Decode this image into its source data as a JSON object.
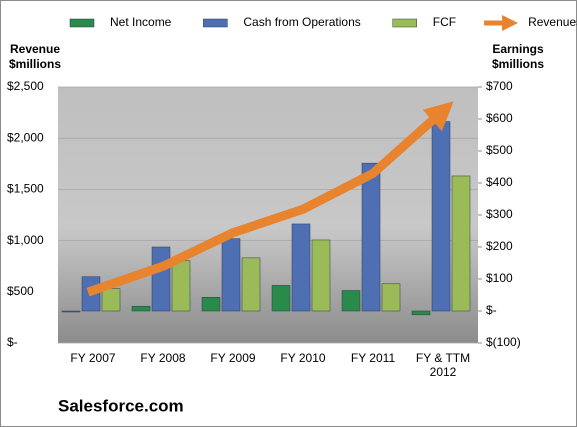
{
  "chart_data": {
    "type": "bar-line",
    "categories": [
      "FY 2007",
      "FY 2008",
      "FY 2009",
      "FY 2010",
      "FY 2011",
      "FY & TTM 2012"
    ],
    "series": [
      {
        "name": "Net Income",
        "color": "#2a8a4a",
        "axis": "y2",
        "values": [
          0,
          15,
          43,
          80,
          64,
          -12
        ]
      },
      {
        "name": "Cash from Operations",
        "color": "#4f6fb3",
        "axis": "y2",
        "values": [
          107,
          200,
          226,
          272,
          462,
          592
        ]
      },
      {
        "name": "FCF",
        "color": "#9bbb59",
        "axis": "y2",
        "values": [
          70,
          157,
          166,
          222,
          85,
          422
        ]
      },
      {
        "name": "Revenues",
        "color": "#e8832e",
        "type": "line",
        "values": [
          497,
          749,
          1077,
          1306,
          1657,
          2267
        ]
      }
    ],
    "ylabel": [
      "Revenue",
      "$millions"
    ],
    "y2label": [
      "Earnings",
      "$millions"
    ],
    "ylim": [
      0,
      2500
    ],
    "yticks": [
      {
        "value": 0,
        "label": "$-"
      },
      {
        "value": 500,
        "label": "$500"
      },
      {
        "value": 1000,
        "label": "$1,000"
      },
      {
        "value": 1500,
        "label": "$1,500"
      },
      {
        "value": 2000,
        "label": "$2,000"
      },
      {
        "value": 2500,
        "label": "$2,500"
      }
    ],
    "y2lim": [
      -100,
      700
    ],
    "y2ticks": [
      {
        "value": -100,
        "label": "$(100)"
      },
      {
        "value": 0,
        "label": "$-"
      },
      {
        "value": 100,
        "label": "$100"
      },
      {
        "value": 200,
        "label": "$200"
      },
      {
        "value": 300,
        "label": "$300"
      },
      {
        "value": 400,
        "label": "$400"
      },
      {
        "value": 500,
        "label": "$500"
      },
      {
        "value": 600,
        "label": "$600"
      },
      {
        "value": 700,
        "label": "$700"
      }
    ],
    "caption": "Salesforce.com",
    "grid": true
  }
}
